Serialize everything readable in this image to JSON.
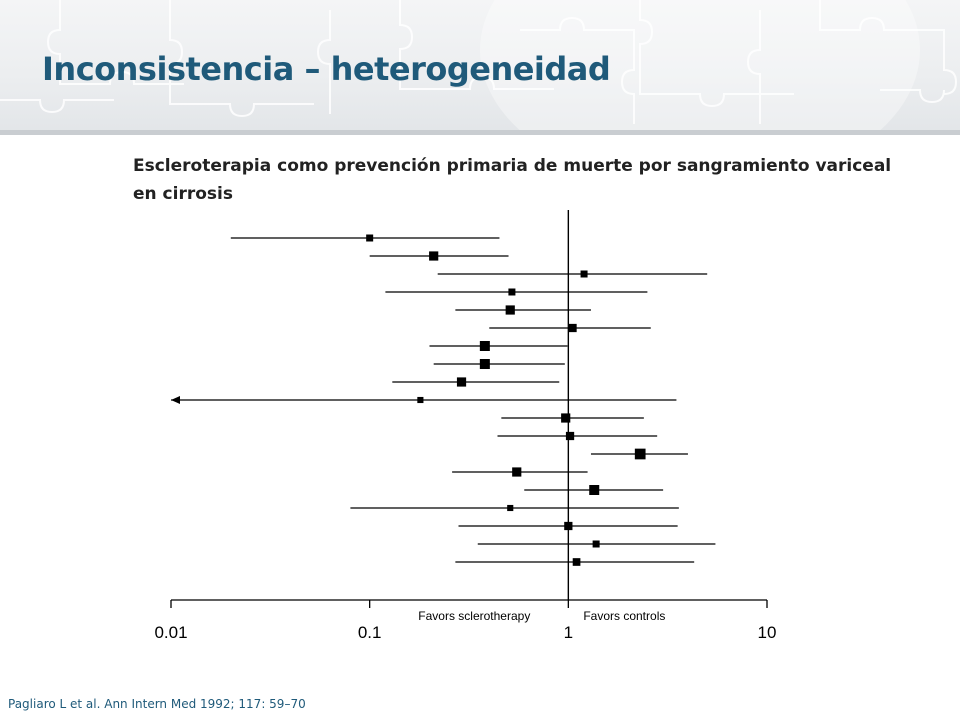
{
  "slide": {
    "title": "Inconsistencia – heterogeneidad",
    "subtitle": "Escleroterapia como prevención primaria de muerte por sangramiento variceal en cirrosis",
    "citation": "Pagliaro L et al. Ann Intern Med 1992; 117: 59–70"
  },
  "chart_data": {
    "type": "forest",
    "x_scale": "log",
    "xlim": [
      0.01,
      10
    ],
    "x_ticks": [
      {
        "value": 0.01,
        "label": "0.01"
      },
      {
        "value": 0.1,
        "label": "0.1"
      },
      {
        "value": 1,
        "label": "1"
      },
      {
        "value": 10,
        "label": "10"
      }
    ],
    "reference_line": 1,
    "left_annotation": "Favors sclerotherapy",
    "right_annotation": "Favors controls",
    "studies": [
      {
        "estimate": 0.1,
        "lower": 0.02,
        "upper": 0.45,
        "weight": 1
      },
      {
        "estimate": 0.21,
        "lower": 0.1,
        "upper": 0.5,
        "weight": 3
      },
      {
        "estimate": 1.2,
        "lower": 0.22,
        "upper": 5.0,
        "weight": 1
      },
      {
        "estimate": 0.52,
        "lower": 0.12,
        "upper": 2.5,
        "weight": 1
      },
      {
        "estimate": 0.51,
        "lower": 0.27,
        "upper": 1.3,
        "weight": 3
      },
      {
        "estimate": 1.05,
        "lower": 0.4,
        "upper": 2.6,
        "weight": 2
      },
      {
        "estimate": 0.38,
        "lower": 0.2,
        "upper": 0.99,
        "weight": 4
      },
      {
        "estimate": 0.38,
        "lower": 0.21,
        "upper": 0.96,
        "weight": 4
      },
      {
        "estimate": 0.29,
        "lower": 0.13,
        "upper": 0.9,
        "weight": 3
      },
      {
        "estimate": 0.18,
        "lower": 0.01,
        "upper": 3.5,
        "weight": 0.5,
        "lower_truncated": true
      },
      {
        "estimate": 0.97,
        "lower": 0.46,
        "upper": 2.4,
        "weight": 3
      },
      {
        "estimate": 1.02,
        "lower": 0.44,
        "upper": 2.8,
        "weight": 2
      },
      {
        "estimate": 2.3,
        "lower": 1.3,
        "upper": 4.0,
        "weight": 5
      },
      {
        "estimate": 0.55,
        "lower": 0.26,
        "upper": 1.25,
        "weight": 3
      },
      {
        "estimate": 1.35,
        "lower": 0.6,
        "upper": 3.0,
        "weight": 4
      },
      {
        "estimate": 0.51,
        "lower": 0.08,
        "upper": 3.6,
        "weight": 0.5
      },
      {
        "estimate": 1.0,
        "lower": 0.28,
        "upper": 3.55,
        "weight": 2
      },
      {
        "estimate": 1.38,
        "lower": 0.35,
        "upper": 5.5,
        "weight": 1
      },
      {
        "estimate": 1.1,
        "lower": 0.27,
        "upper": 4.3,
        "weight": 1.5
      }
    ]
  }
}
